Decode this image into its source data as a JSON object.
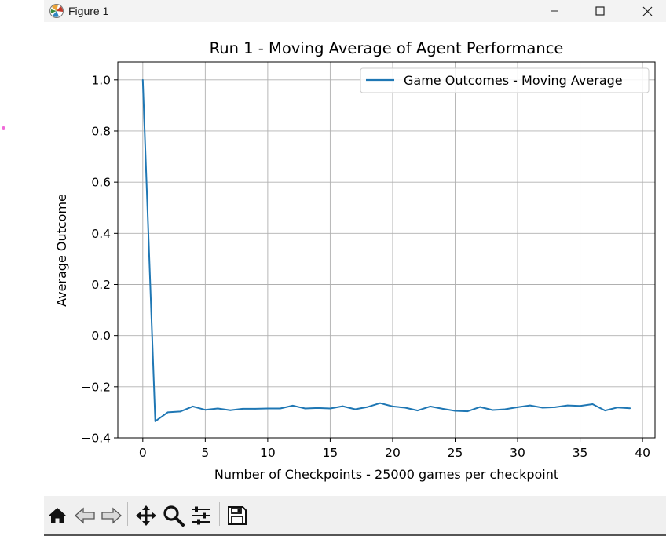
{
  "window": {
    "title": "Figure 1"
  },
  "icons": {
    "app": "figure-app-icon",
    "minimize": "minimize-icon",
    "maximize": "maximize-icon",
    "close": "close-icon",
    "toolbar": [
      "home-icon",
      "back-arrow-icon",
      "forward-arrow-icon",
      "pan-icon",
      "zoom-icon",
      "configure-subplots-icon",
      "save-icon"
    ]
  },
  "chart_data": {
    "type": "line",
    "title": "Run 1 - Moving Average of Agent Performance",
    "xlabel": "Number of Checkpoints - 25000 games per checkpoint",
    "ylabel": "Average Outcome",
    "xlim": [
      -2,
      41
    ],
    "ylim": [
      -0.4,
      1.07
    ],
    "xticks": [
      0,
      5,
      10,
      15,
      20,
      25,
      30,
      35,
      40
    ],
    "yticks": [
      -0.4,
      -0.2,
      0.0,
      0.2,
      0.4,
      0.6,
      0.8,
      1.0
    ],
    "xtick_labels": [
      "0",
      "5",
      "10",
      "15",
      "20",
      "25",
      "30",
      "35",
      "40"
    ],
    "ytick_labels": [
      "−0.4",
      "−0.2",
      "0.0",
      "0.2",
      "0.4",
      "0.6",
      "0.8",
      "1.0"
    ],
    "grid": true,
    "legend_position": "top-right",
    "series": [
      {
        "name": "Game Outcomes - Moving Average",
        "color": "#1f77b4",
        "x": [
          0,
          1,
          2,
          3,
          4,
          5,
          6,
          7,
          8,
          9,
          10,
          11,
          12,
          13,
          14,
          15,
          16,
          17,
          18,
          19,
          20,
          21,
          22,
          23,
          24,
          25,
          26,
          27,
          28,
          29,
          30,
          31,
          32,
          33,
          34,
          35,
          36,
          37,
          38,
          39
        ],
        "values": [
          1.0,
          -0.335,
          -0.3,
          -0.297,
          -0.277,
          -0.29,
          -0.285,
          -0.292,
          -0.286,
          -0.286,
          -0.285,
          -0.285,
          -0.274,
          -0.285,
          -0.283,
          -0.285,
          -0.276,
          -0.288,
          -0.279,
          -0.264,
          -0.277,
          -0.282,
          -0.293,
          -0.277,
          -0.286,
          -0.294,
          -0.296,
          -0.279,
          -0.291,
          -0.288,
          -0.28,
          -0.273,
          -0.282,
          -0.28,
          -0.273,
          -0.275,
          -0.268,
          -0.293,
          -0.281,
          -0.284
        ]
      }
    ]
  }
}
